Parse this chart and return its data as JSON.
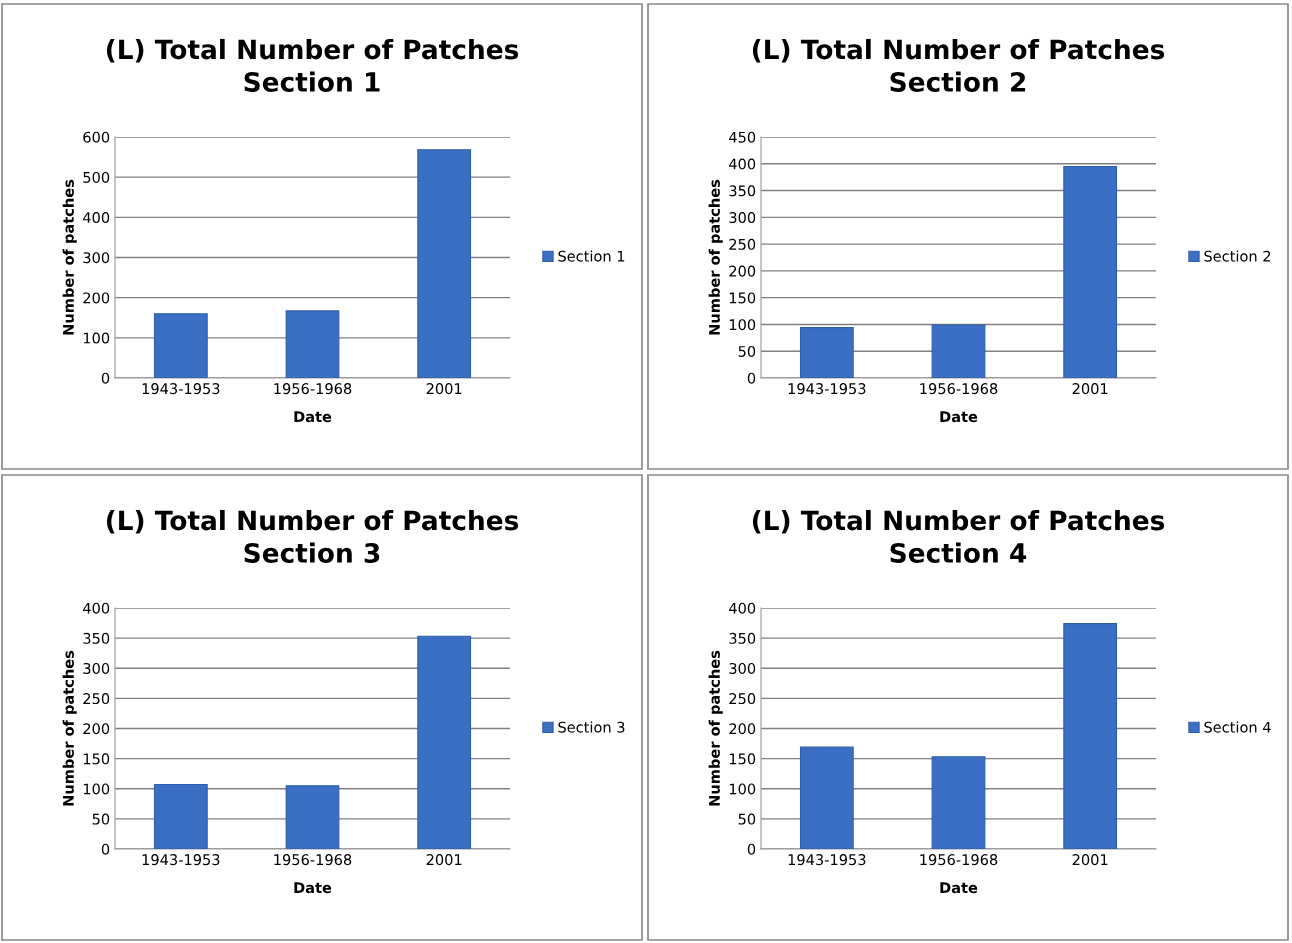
{
  "chart_data": [
    {
      "type": "bar",
      "title": "(L) Total Number of Patches\nSection 1",
      "xlabel": "Date",
      "ylabel": "Number of patches",
      "categories": [
        "1943-1953",
        "1956-1968",
        "2001"
      ],
      "series": [
        {
          "name": "Section 1",
          "color": "#3a6fc4",
          "values": [
            160,
            167,
            568
          ]
        }
      ],
      "ylim": [
        0,
        600
      ],
      "yticks": [
        0,
        100,
        200,
        300,
        400,
        500,
        600
      ],
      "grid": "y",
      "legend": "right"
    },
    {
      "type": "bar",
      "title": "(L) Total Number of Patches\nSection 2",
      "xlabel": "Date",
      "ylabel": "Number of patches",
      "categories": [
        "1943-1953",
        "1956-1968",
        "2001"
      ],
      "series": [
        {
          "name": "Section 2",
          "color": "#3a6fc4",
          "values": [
            94,
            99,
            395
          ]
        }
      ],
      "ylim": [
        0,
        450
      ],
      "yticks": [
        0,
        50,
        100,
        150,
        200,
        250,
        300,
        350,
        400,
        450
      ],
      "grid": "y",
      "legend": "right"
    },
    {
      "type": "bar",
      "title": "(L) Total Number of Patches\nSection 3",
      "xlabel": "Date",
      "ylabel": "Number of patches",
      "categories": [
        "1943-1953",
        "1956-1968",
        "2001"
      ],
      "series": [
        {
          "name": "Section 3",
          "color": "#3a6fc4",
          "values": [
            107,
            105,
            353
          ]
        }
      ],
      "ylim": [
        0,
        400
      ],
      "yticks": [
        0,
        50,
        100,
        150,
        200,
        250,
        300,
        350,
        400
      ],
      "grid": "y",
      "legend": "right"
    },
    {
      "type": "bar",
      "title": "(L) Total Number of Patches\nSection 4",
      "xlabel": "Date",
      "ylabel": "Number of patches",
      "categories": [
        "1943-1953",
        "1956-1968",
        "2001"
      ],
      "series": [
        {
          "name": "Section 4",
          "color": "#3a6fc4",
          "values": [
            169,
            153,
            374
          ]
        }
      ],
      "ylim": [
        0,
        400
      ],
      "yticks": [
        0,
        50,
        100,
        150,
        200,
        250,
        300,
        350,
        400
      ],
      "grid": "y",
      "legend": "right"
    }
  ]
}
